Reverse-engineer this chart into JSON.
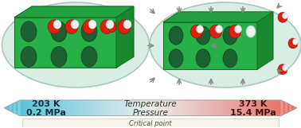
{
  "fig_width": 3.78,
  "fig_height": 1.61,
  "dpi": 100,
  "bg_color": "#ffffff",
  "ellipse_bg": "#d8ede4",
  "ellipse_edge": "#a8c8b8",
  "box_front": "#28b048",
  "box_top": "#22a040",
  "box_right": "#1a8830",
  "box_edge": "#157025",
  "hole_color": "#1a6030",
  "hole_edge": "#104020",
  "mol_red": "#dd2010",
  "mol_red_edge": "#881000",
  "mol_white": "#f0f0f0",
  "mol_white_edge": "#cccccc",
  "arrow_lw": 1.0,
  "arrow_color": "#888888",
  "text_left_top": "203 K",
  "text_left_bot": "0.2 MPa",
  "text_right_top": "373 K",
  "text_right_bot": "15.4 MPa",
  "text_center_top": "Temperature",
  "text_center_bot": "Pressure",
  "text_bottom": "Critical point"
}
